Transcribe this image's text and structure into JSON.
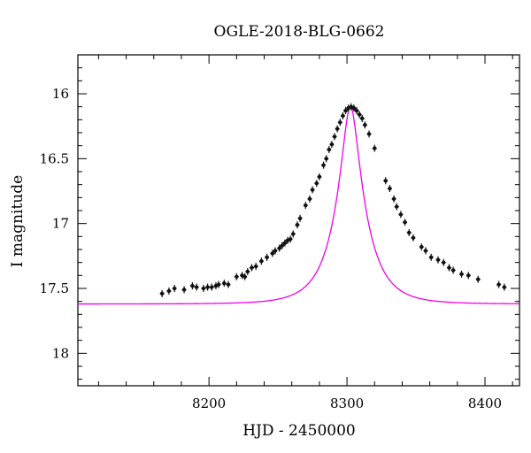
{
  "chart_data": {
    "type": "scatter",
    "title": "OGLE-2018-BLG-0662",
    "xlabel": "HJD - 2450000",
    "ylabel": "I magnitude",
    "xlim": [
      8105,
      8425
    ],
    "ylim": [
      18.25,
      15.7
    ],
    "y_inverted": true,
    "xticks": [
      8200,
      8300,
      8400
    ],
    "yticks": [
      16,
      16.5,
      17,
      17.5,
      18
    ],
    "yticks_labels": [
      "16",
      "16.5",
      "17",
      "17.5",
      "18"
    ],
    "grid": false,
    "colors": {
      "points": "#111111",
      "model": "#ee00ee",
      "axes": "#000000"
    },
    "model": {
      "t0": 8302.5,
      "baseline_mag": 17.62,
      "peak_mag": 16.1,
      "tE": 22
    },
    "points": [
      [
        8166,
        17.54
      ],
      [
        8171,
        17.52
      ],
      [
        8175,
        17.5
      ],
      [
        8182,
        17.51
      ],
      [
        8188,
        17.48
      ],
      [
        8191,
        17.49
      ],
      [
        8196,
        17.5
      ],
      [
        8199,
        17.49
      ],
      [
        8202,
        17.49
      ],
      [
        8205,
        17.48
      ],
      [
        8207,
        17.47
      ],
      [
        8211,
        17.46
      ],
      [
        8214,
        17.47
      ],
      [
        8220,
        17.41
      ],
      [
        8224,
        17.4
      ],
      [
        8226,
        17.41
      ],
      [
        8228,
        17.37
      ],
      [
        8231,
        17.34
      ],
      [
        8234,
        17.33
      ],
      [
        8238,
        17.29
      ],
      [
        8242,
        17.26
      ],
      [
        8246,
        17.23
      ],
      [
        8248,
        17.21
      ],
      [
        8251,
        17.19
      ],
      [
        8253,
        17.17
      ],
      [
        8255,
        17.15
      ],
      [
        8257,
        17.13
      ],
      [
        8259,
        17.12
      ],
      [
        8261,
        17.08
      ],
      [
        8264,
        17.01
      ],
      [
        8266,
        16.96
      ],
      [
        8270,
        16.86
      ],
      [
        8273,
        16.81
      ],
      [
        8275,
        16.74
      ],
      [
        8278,
        16.69
      ],
      [
        8280,
        16.64
      ],
      [
        8283,
        16.55
      ],
      [
        8285,
        16.5
      ],
      [
        8287,
        16.43
      ],
      [
        8289,
        16.39
      ],
      [
        8291,
        16.33
      ],
      [
        8293,
        16.27
      ],
      [
        8295,
        16.22
      ],
      [
        8297,
        16.17
      ],
      [
        8299,
        16.13
      ],
      [
        8301,
        16.11
      ],
      [
        8303,
        16.1
      ],
      [
        8305,
        16.11
      ],
      [
        8307,
        16.13
      ],
      [
        8309,
        16.16
      ],
      [
        8311,
        16.19
      ],
      [
        8313,
        16.24
      ],
      [
        8316,
        16.31
      ],
      [
        8320,
        16.42
      ],
      [
        8328,
        16.67
      ],
      [
        8331,
        16.73
      ],
      [
        8334,
        16.81
      ],
      [
        8336,
        16.87
      ],
      [
        8339,
        16.93
      ],
      [
        8342,
        16.99
      ],
      [
        8345,
        17.07
      ],
      [
        8348,
        17.11
      ],
      [
        8354,
        17.18
      ],
      [
        8357,
        17.21
      ],
      [
        8361,
        17.26
      ],
      [
        8366,
        17.28
      ],
      [
        8370,
        17.3
      ],
      [
        8374,
        17.34
      ],
      [
        8377,
        17.36
      ],
      [
        8383,
        17.39
      ],
      [
        8388,
        17.4
      ],
      [
        8395,
        17.43
      ],
      [
        8410,
        17.47
      ],
      [
        8414,
        17.49
      ]
    ]
  }
}
